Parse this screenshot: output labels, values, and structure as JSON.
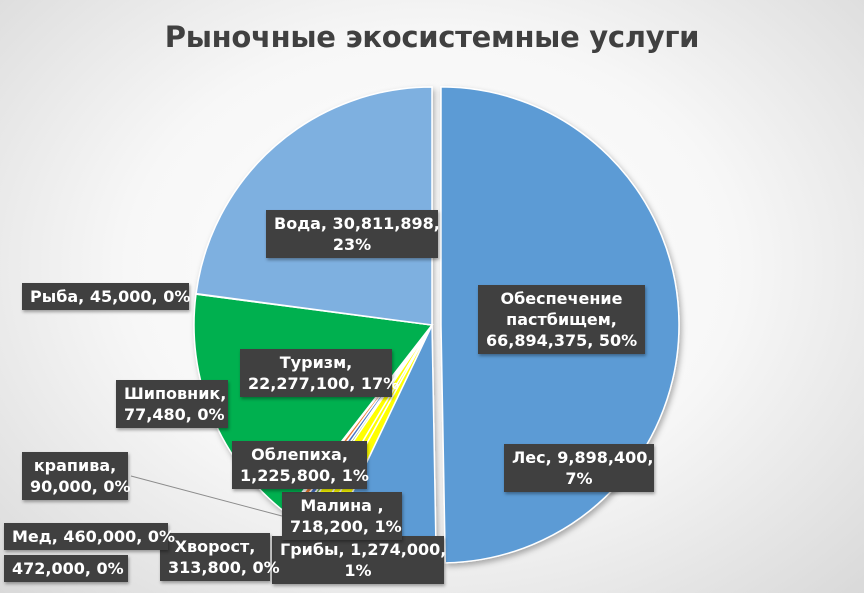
{
  "chart_data": {
    "type": "pie",
    "title": "Рыночные экосистемные услуги",
    "slices": [
      {
        "name": "Обеспечение пастбищем",
        "value": 66894375,
        "pct": "50%",
        "color": "#5b9bd5",
        "label_lines": [
          "Обеспечение",
          "пастбищем,",
          "66,894,375, 50%"
        ]
      },
      {
        "name": "Лес",
        "value": 9898400,
        "pct": "7%",
        "color": "#5b9bd5",
        "label_lines": [
          "Лес, 9,898,400,",
          "7%"
        ]
      },
      {
        "name": "Грибы",
        "value": 1274000,
        "pct": "1%",
        "color": "#ffff00",
        "label_lines": [
          "Грибы, 1,274,000,",
          "1%"
        ]
      },
      {
        "name": "Малина",
        "value": 718200,
        "pct": "1%",
        "color": "#ffff00",
        "label_lines": [
          "Малина ,",
          "718,200, 1%"
        ]
      },
      {
        "name": "Облепиха",
        "value": 1225800,
        "pct": "1%",
        "color": "#ffff00",
        "label_lines": [
          "Облепиха,",
          "1,225,800, 1%"
        ]
      },
      {
        "name": "Хворост",
        "value": 313800,
        "pct": "0%",
        "color": "#70ad47",
        "label_lines": [
          "Хворост,",
          "313,800, 0%"
        ]
      },
      {
        "name": "",
        "value": 472000,
        "pct": "0%",
        "color": "#4472c4",
        "label_lines": [
          "472,000, 0%"
        ]
      },
      {
        "name": "Мед",
        "value": 460000,
        "pct": "0%",
        "color": "#ed7d31",
        "label_lines": [
          "Мед, 460,000, 0%"
        ]
      },
      {
        "name": "крапива",
        "value": 90000,
        "pct": "0%",
        "color": "#a5a5a5",
        "label_lines": [
          "крапива,",
          "90,000, 0%"
        ]
      },
      {
        "name": "Шиповник",
        "value": 77480,
        "pct": "0%",
        "color": "#c55a11",
        "label_lines": [
          "Шиповник,",
          "77,480, 0%"
        ]
      },
      {
        "name": "Туризм",
        "value": 22277100,
        "pct": "17%",
        "color": "#00b050",
        "label_lines": [
          "Туризм,",
          "22,277,100, 17%"
        ]
      },
      {
        "name": "Рыба",
        "value": 45000,
        "pct": "0%",
        "color": "#a9d18e",
        "label_lines": [
          "Рыба, 45,000, 0%"
        ]
      },
      {
        "name": "Вода",
        "value": 30811898,
        "pct": "23%",
        "color": "#7eb0e0",
        "label_lines": [
          "Вода, 30,811,898,",
          "23%"
        ]
      }
    ],
    "legend": "none"
  }
}
